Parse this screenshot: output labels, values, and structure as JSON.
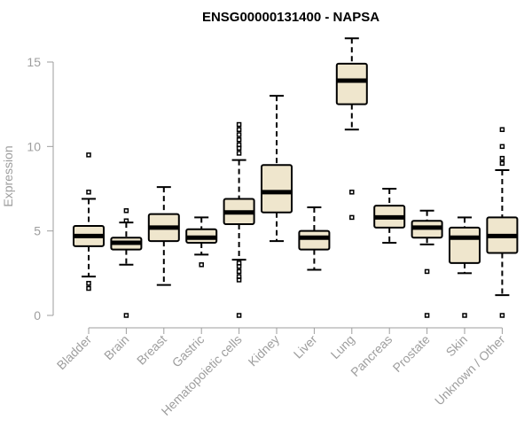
{
  "chart_data": {
    "type": "boxplot",
    "title": "ENSG00000131400 - NAPSA",
    "xlabel": "",
    "ylabel": "Expression",
    "ylim": [
      0,
      16.5
    ],
    "yticks": [
      0,
      5,
      10,
      15
    ],
    "colors": {
      "box_fill": "#efe6cd",
      "box_stroke": "#000000",
      "axis": "#9e9e9e",
      "title": "#000000"
    },
    "series": [
      {
        "name": "Bladder",
        "whisker_low": 2.3,
        "q1": 4.1,
        "median": 4.7,
        "q3": 5.3,
        "whisker_high": 6.9,
        "outliers": [
          9.5,
          7.3,
          1.9,
          1.6
        ]
      },
      {
        "name": "Brain",
        "whisker_low": 3.0,
        "q1": 3.9,
        "median": 4.3,
        "q3": 4.6,
        "whisker_high": 5.5,
        "outliers": [
          6.2,
          5.6,
          0
        ]
      },
      {
        "name": "Breast",
        "whisker_low": 1.8,
        "q1": 4.4,
        "median": 5.2,
        "q3": 6.0,
        "whisker_high": 7.6,
        "outliers": []
      },
      {
        "name": "Gastric",
        "whisker_low": 3.6,
        "q1": 4.3,
        "median": 4.6,
        "q3": 5.1,
        "whisker_high": 5.8,
        "outliers": [
          3.0
        ]
      },
      {
        "name": "Hematopoietic cells",
        "whisker_low": 3.3,
        "q1": 5.4,
        "median": 6.1,
        "q3": 6.9,
        "whisker_high": 9.2,
        "outliers": [
          11.3,
          11.0,
          10.7,
          10.4,
          10.1,
          9.9,
          9.6,
          3.1,
          2.9,
          2.6,
          2.3,
          2.1,
          0
        ]
      },
      {
        "name": "Kidney",
        "whisker_low": 4.4,
        "q1": 6.1,
        "median": 7.3,
        "q3": 8.9,
        "whisker_high": 13.0,
        "outliers": []
      },
      {
        "name": "Liver",
        "whisker_low": 2.7,
        "q1": 3.9,
        "median": 4.6,
        "q3": 5.0,
        "whisker_high": 6.4,
        "outliers": []
      },
      {
        "name": "Lung",
        "whisker_low": 11.0,
        "q1": 12.5,
        "median": 13.9,
        "q3": 14.9,
        "whisker_high": 16.4,
        "outliers": [
          7.3,
          5.8
        ]
      },
      {
        "name": "Pancreas",
        "whisker_low": 4.3,
        "q1": 5.2,
        "median": 5.8,
        "q3": 6.5,
        "whisker_high": 7.5,
        "outliers": []
      },
      {
        "name": "Prostate",
        "whisker_low": 4.2,
        "q1": 4.6,
        "median": 5.2,
        "q3": 5.6,
        "whisker_high": 6.2,
        "outliers": [
          2.6,
          0
        ]
      },
      {
        "name": "Skin",
        "whisker_low": 2.5,
        "q1": 3.1,
        "median": 4.6,
        "q3": 5.2,
        "whisker_high": 5.8,
        "outliers": [
          0
        ]
      },
      {
        "name": "Unknown / Other",
        "whisker_low": 1.2,
        "q1": 3.7,
        "median": 4.7,
        "q3": 5.8,
        "whisker_high": 8.6,
        "outliers": [
          11.0,
          10.0,
          9.3,
          9.0,
          0
        ]
      }
    ]
  }
}
